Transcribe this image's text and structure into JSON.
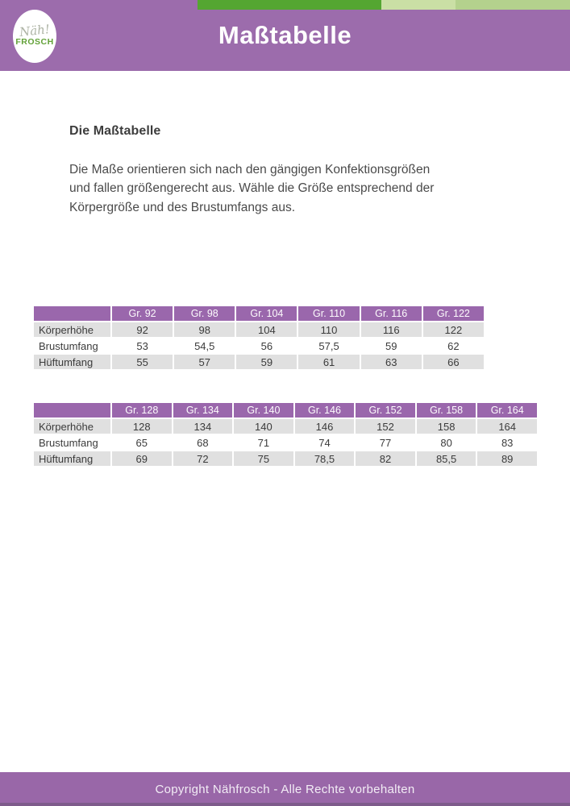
{
  "header": {
    "title": "Maßtabelle",
    "logo": {
      "script": "Näh!",
      "name": "FROSCH"
    },
    "colors": {
      "purple": "#9c6cac",
      "green_dark": "#54a631",
      "green_pale": "#cadfa5",
      "green_light": "#b4d18d"
    }
  },
  "content": {
    "heading": "Die Maßtabelle",
    "paragraph_lines": [
      "Die Maße orientieren sich nach den gängigen Konfektionsgrößen",
      "und fallen größengerecht aus. Wähle die Größe entsprechend der",
      "Körpergröße und des Brustumfangs aus."
    ]
  },
  "tables": [
    {
      "columns": [
        "",
        "Gr. 92",
        "Gr. 98",
        "Gr. 104",
        "Gr. 110",
        "Gr. 116",
        "Gr. 122"
      ],
      "rows": [
        {
          "label": "Körperhöhe",
          "values": [
            "92",
            "98",
            "104",
            "110",
            "116",
            "122"
          ]
        },
        {
          "label": "Brustumfang",
          "values": [
            "53",
            "54,5",
            "56",
            "57,5",
            "59",
            "62"
          ]
        },
        {
          "label": "Hüftumfang",
          "values": [
            "55",
            "57",
            "59",
            "61",
            "63",
            "66"
          ]
        }
      ]
    },
    {
      "columns": [
        "",
        "Gr. 128",
        "Gr. 134",
        "Gr. 140",
        "Gr. 146",
        "Gr. 152",
        "Gr. 158",
        "Gr. 164"
      ],
      "rows": [
        {
          "label": "Körperhöhe",
          "values": [
            "128",
            "134",
            "140",
            "146",
            "152",
            "158",
            "164"
          ]
        },
        {
          "label": "Brustumfang",
          "values": [
            "65",
            "68",
            "71",
            "74",
            "77",
            "80",
            "83"
          ]
        },
        {
          "label": "Hüftumfang",
          "values": [
            "69",
            "72",
            "75",
            "78,5",
            "82",
            "85,5",
            "89"
          ]
        }
      ]
    }
  ],
  "footer": {
    "text": "Copyright Nähfrosch - Alle Rechte vorbehalten"
  }
}
